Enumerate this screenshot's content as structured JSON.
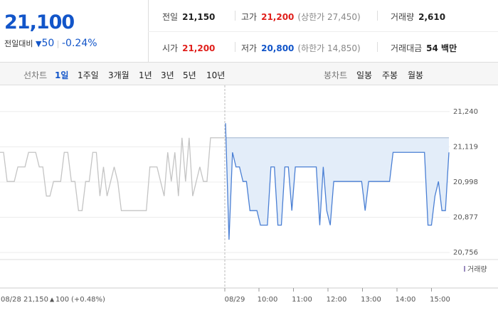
{
  "quote": {
    "price": "21,100",
    "change_label": "전일대비",
    "change": "50",
    "change_pct": "-0.24%"
  },
  "stats": [
    {
      "label": "전일",
      "value": "21,150"
    },
    {
      "label": "고가",
      "value": "21,200",
      "sub": "(상한가 27,450)"
    },
    {
      "label": "거래량",
      "value": "2,610"
    },
    {
      "label": "시가",
      "value": "21,200"
    },
    {
      "label": "저가",
      "value": "20,800",
      "sub": "(하한가 14,850)"
    },
    {
      "label": "거래대금",
      "value": "54 백만"
    }
  ],
  "tabs": {
    "line_label": "선차트",
    "line_periods": [
      "1일",
      "1주일",
      "3개월",
      "1년",
      "3년",
      "5년",
      "10년"
    ],
    "candle_label": "봉차트",
    "candle_periods": [
      "일봉",
      "주봉",
      "월봉"
    ]
  },
  "chart_data": {
    "type": "line",
    "ylim": [
      20732,
      21330
    ],
    "yticks": [
      {
        "value": 21240,
        "label": "21,240"
      },
      {
        "value": 21119,
        "label": "21,119"
      },
      {
        "value": 20998,
        "label": "20,998"
      },
      {
        "value": 20877,
        "label": "20,877"
      },
      {
        "value": 20756,
        "label": "20,756"
      }
    ],
    "grid": true,
    "prev_close": 21150,
    "prev_day_summary": {
      "close": "21,150",
      "change": "100",
      "change_pct": "(+0.48%)"
    },
    "time_labels": [
      "10:00",
      "11:00",
      "12:00",
      "13:00",
      "14:00",
      "15:00"
    ],
    "volume_label": "거래량",
    "series": [
      {
        "name": "08/28",
        "color": "#c4c4c4",
        "values": [
          21100,
          21100,
          21000,
          21000,
          21000,
          21050,
          21050,
          21050,
          21100,
          21100,
          21100,
          21050,
          21050,
          20950,
          20950,
          21000,
          21000,
          21000,
          21100,
          21100,
          21000,
          21000,
          20900,
          20900,
          21000,
          21000,
          21100,
          21100,
          20950,
          21050,
          20950,
          21000,
          21050,
          21000,
          20900,
          20900,
          20900,
          20900,
          20900,
          20900,
          20900,
          20900,
          21050,
          21050,
          21050,
          21000,
          20950,
          21100,
          21000,
          21100,
          20950,
          21150,
          21000,
          21150,
          20950,
          21000,
          21050,
          21000,
          21000,
          21150,
          21150,
          21150,
          21150,
          21150
        ]
      },
      {
        "name": "08/29",
        "color": "#4a7fd4",
        "fill": "#e3edf9",
        "values": [
          21200,
          20800,
          21100,
          21050,
          21050,
          21000,
          21000,
          20900,
          20900,
          20900,
          20850,
          20850,
          20850,
          21050,
          21050,
          20850,
          20850,
          21050,
          21050,
          20900,
          21050,
          21050,
          21050,
          21050,
          21050,
          21050,
          21050,
          20850,
          21050,
          20900,
          20850,
          21000,
          21000,
          21000,
          21000,
          21000,
          21000,
          21000,
          21000,
          21000,
          20900,
          21000,
          21000,
          21000,
          21000,
          21000,
          21000,
          21000,
          21100,
          21100,
          21100,
          21100,
          21100,
          21100,
          21100,
          21100,
          21100,
          21100,
          20850,
          20850,
          20950,
          21000,
          20900,
          20900,
          21100
        ]
      }
    ]
  }
}
